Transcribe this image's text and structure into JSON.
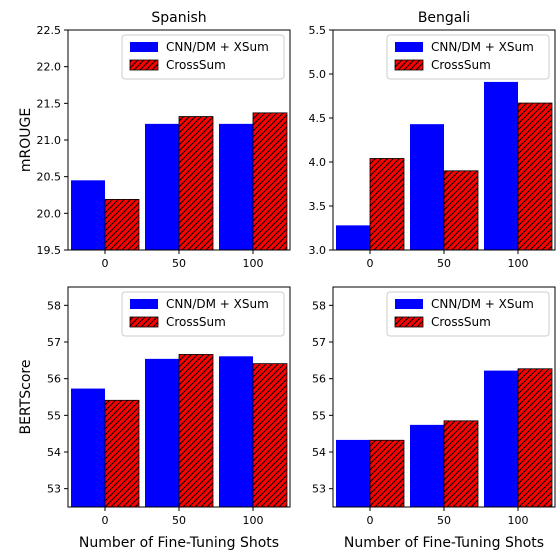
{
  "colors": {
    "cnn_xsum": "#0000ff",
    "crosssum": "#ff0000",
    "hatch": "#000000",
    "frame": "#000000",
    "background": "#ffffff"
  },
  "chart_data": [
    {
      "type": "bar",
      "title": "Spanish",
      "xlabel": "",
      "ylabel": "mROUGE",
      "categories": [
        "0",
        "50",
        "100"
      ],
      "ylim": [
        19.5,
        22.5
      ],
      "yticks": [
        "19.5",
        "20.0",
        "20.5",
        "21.0",
        "21.5",
        "22.0",
        "22.5"
      ],
      "grid": false,
      "legend_position": "top-right",
      "series": [
        {
          "name": "CNN/DM + XSum",
          "values": [
            20.45,
            21.22,
            21.22
          ],
          "style": "solid"
        },
        {
          "name": "CrossSum",
          "values": [
            20.19,
            21.32,
            21.37
          ],
          "style": "hatched"
        }
      ]
    },
    {
      "type": "bar",
      "title": "Bengali",
      "xlabel": "",
      "ylabel": "",
      "categories": [
        "0",
        "50",
        "100"
      ],
      "ylim": [
        3.0,
        5.5
      ],
      "yticks": [
        "3.0",
        "3.5",
        "4.0",
        "4.5",
        "5.0",
        "5.5"
      ],
      "grid": false,
      "legend_position": "top-right",
      "series": [
        {
          "name": "CNN/DM + XSum",
          "values": [
            3.28,
            4.43,
            4.91
          ],
          "style": "solid"
        },
        {
          "name": "CrossSum",
          "values": [
            4.04,
            3.9,
            4.67
          ],
          "style": "hatched"
        }
      ]
    },
    {
      "type": "bar",
      "title": "",
      "xlabel": "Number of Fine-Tuning Shots",
      "ylabel": "BERTScore",
      "categories": [
        "0",
        "50",
        "100"
      ],
      "ylim": [
        52.5,
        58.5
      ],
      "yticks": [
        "53",
        "54",
        "55",
        "56",
        "57",
        "58"
      ],
      "grid": false,
      "legend_position": "top-right",
      "series": [
        {
          "name": "CNN/DM + XSum",
          "values": [
            55.73,
            56.54,
            56.61
          ],
          "style": "solid"
        },
        {
          "name": "CrossSum",
          "values": [
            55.41,
            56.66,
            56.41
          ],
          "style": "hatched"
        }
      ]
    },
    {
      "type": "bar",
      "title": "",
      "xlabel": "Number of Fine-Tuning Shots",
      "ylabel": "",
      "categories": [
        "0",
        "50",
        "100"
      ],
      "ylim": [
        52.5,
        58.5
      ],
      "yticks": [
        "53",
        "54",
        "55",
        "56",
        "57",
        "58"
      ],
      "grid": false,
      "legend_position": "top-right",
      "series": [
        {
          "name": "CNN/DM + XSum",
          "values": [
            54.33,
            54.74,
            56.22
          ],
          "style": "solid"
        },
        {
          "name": "CrossSum",
          "values": [
            54.32,
            54.85,
            56.27
          ],
          "style": "hatched"
        }
      ]
    }
  ]
}
